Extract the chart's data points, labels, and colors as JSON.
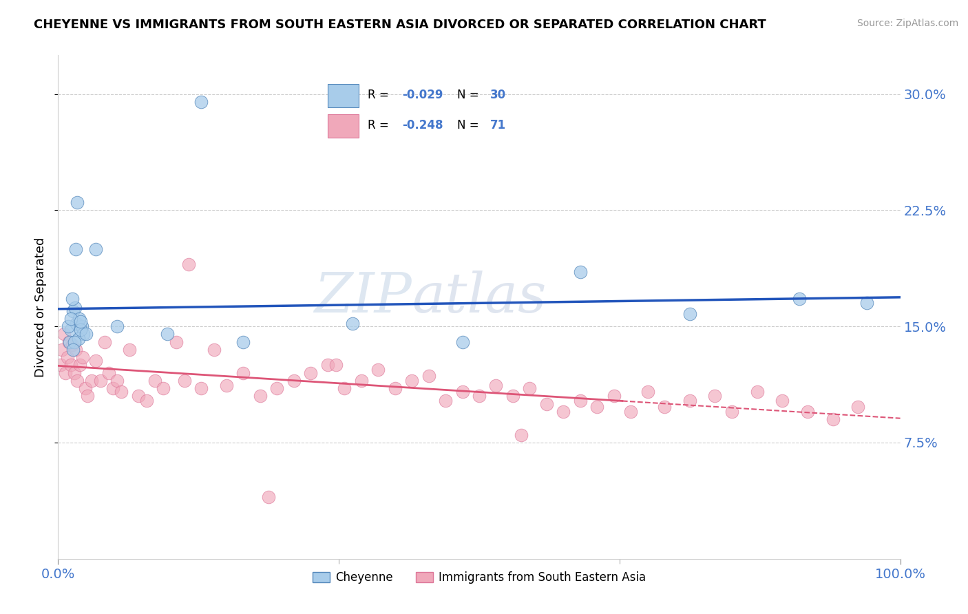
{
  "title": "CHEYENNE VS IMMIGRANTS FROM SOUTH EASTERN ASIA DIVORCED OR SEPARATED CORRELATION CHART",
  "source": "Source: ZipAtlas.com",
  "ylabel": "Divorced or Separated",
  "xlim": [
    0.0,
    100.0
  ],
  "ylim": [
    0.0,
    32.5
  ],
  "yticks": [
    7.5,
    15.0,
    22.5,
    30.0
  ],
  "ytick_labels": [
    "7.5%",
    "15.0%",
    "22.5%",
    "30.0%"
  ],
  "xtick_labels": [
    "0.0%",
    "100.0%"
  ],
  "cheyenne_color": "#a8ccea",
  "cheyenne_edge_color": "#5588bb",
  "immigrants_color": "#f0a8ba",
  "immigrants_edge_color": "#dd7799",
  "blue_line_color": "#2255bb",
  "pink_line_color": "#dd5577",
  "watermark_text": "ZIPatlas",
  "background_color": "#ffffff",
  "label_color": "#4477cc",
  "cheyenne_R": "-0.029",
  "cheyenne_N": "30",
  "immigrants_R": "-0.248",
  "immigrants_N": "71",
  "cheyenne_x": [
    1.5,
    2.2,
    2.8,
    1.8,
    2.0,
    2.5,
    3.0,
    1.2,
    1.4,
    1.7,
    2.1,
    2.4,
    1.9,
    2.7,
    3.3,
    4.5,
    1.5,
    1.8,
    2.3,
    2.7,
    7.0,
    13.0,
    17.0,
    22.0,
    35.0,
    48.0,
    62.0,
    75.0,
    88.0,
    96.0
  ],
  "cheyenne_y": [
    14.8,
    15.2,
    15.0,
    16.0,
    16.2,
    15.5,
    14.5,
    15.0,
    14.0,
    16.8,
    20.0,
    14.2,
    14.0,
    14.8,
    14.5,
    20.0,
    15.5,
    13.5,
    23.0,
    15.3,
    15.0,
    14.5,
    29.5,
    14.0,
    15.2,
    14.0,
    18.5,
    15.8,
    16.8,
    16.5
  ],
  "immigrants_x": [
    0.3,
    0.5,
    0.7,
    0.9,
    1.1,
    1.3,
    1.5,
    1.7,
    1.9,
    2.1,
    2.3,
    2.6,
    2.9,
    3.2,
    3.5,
    4.0,
    4.5,
    5.0,
    5.5,
    6.0,
    6.5,
    7.0,
    7.5,
    8.5,
    9.5,
    10.5,
    11.5,
    12.5,
    14.0,
    15.5,
    17.0,
    18.5,
    20.0,
    22.0,
    24.0,
    26.0,
    28.0,
    30.0,
    32.0,
    34.0,
    36.0,
    38.0,
    40.0,
    42.0,
    44.0,
    46.0,
    48.0,
    50.0,
    52.0,
    54.0,
    56.0,
    58.0,
    60.0,
    62.0,
    64.0,
    66.0,
    68.0,
    70.0,
    72.0,
    75.0,
    78.0,
    80.0,
    83.0,
    86.0,
    89.0,
    92.0,
    95.0,
    55.0,
    33.0,
    15.0,
    25.0
  ],
  "immigrants_y": [
    12.5,
    13.5,
    14.5,
    12.0,
    13.0,
    14.0,
    12.5,
    13.8,
    12.0,
    13.5,
    11.5,
    12.5,
    13.0,
    11.0,
    10.5,
    11.5,
    12.8,
    11.5,
    14.0,
    12.0,
    11.0,
    11.5,
    10.8,
    13.5,
    10.5,
    10.2,
    11.5,
    11.0,
    14.0,
    19.0,
    11.0,
    13.5,
    11.2,
    12.0,
    10.5,
    11.0,
    11.5,
    12.0,
    12.5,
    11.0,
    11.5,
    12.2,
    11.0,
    11.5,
    11.8,
    10.2,
    10.8,
    10.5,
    11.2,
    10.5,
    11.0,
    10.0,
    9.5,
    10.2,
    9.8,
    10.5,
    9.5,
    10.8,
    9.8,
    10.2,
    10.5,
    9.5,
    10.8,
    10.2,
    9.5,
    9.0,
    9.8,
    8.0,
    12.5,
    11.5,
    4.0
  ],
  "pink_solid_end_x": 67.0
}
